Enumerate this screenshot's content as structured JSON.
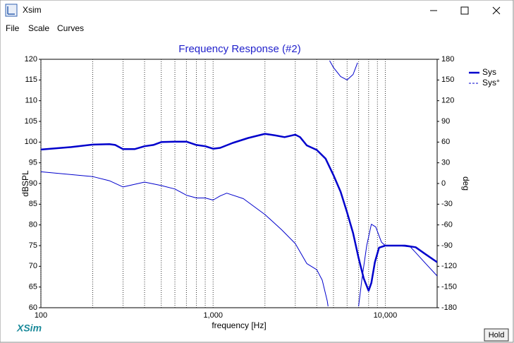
{
  "window": {
    "title": "Xsim"
  },
  "menu": [
    "File",
    "Scale",
    "Curves"
  ],
  "logo": "XSim",
  "button": "Hold",
  "chart_data": {
    "type": "line",
    "title": "Frequency Response (#2)",
    "xlabel": "frequency [Hz]",
    "ylabel": "dBSPL",
    "y2label": "deg",
    "xscale": "log",
    "xlim": [
      100,
      20000
    ],
    "ylim": [
      60,
      120
    ],
    "y2lim": [
      -180,
      180
    ],
    "xticks": [
      100,
      {
        "value": 1000,
        "label": "1,000"
      },
      {
        "value": 10000,
        "label": "10,000"
      }
    ],
    "xminor": [
      200,
      300,
      400,
      500,
      600,
      700,
      800,
      900,
      2000,
      3000,
      4000,
      5000,
      6000,
      7000,
      8000,
      9000
    ],
    "yticks": [
      60,
      65,
      70,
      75,
      80,
      85,
      90,
      95,
      100,
      105,
      110,
      115,
      120
    ],
    "y2ticks": [
      -180,
      -150,
      -120,
      -90,
      -60,
      -30,
      0,
      30,
      60,
      90,
      120,
      150,
      180
    ],
    "legend": "right",
    "series": [
      {
        "name": "Sys",
        "color": "#0000cc",
        "width": 2.5,
        "linestyle": "solid",
        "x": [
          100,
          150,
          200,
          250,
          270,
          300,
          350,
          400,
          450,
          500,
          600,
          700,
          800,
          900,
          1000,
          1100,
          1300,
          1600,
          2000,
          2300,
          2600,
          3000,
          3200,
          3500,
          4000,
          4500,
          5000,
          5500,
          6000,
          6500,
          7000,
          7500,
          8000,
          8300,
          8700,
          9200,
          10000,
          13000,
          15000,
          17000,
          20000
        ],
        "values": [
          98.2,
          98.8,
          99.4,
          99.5,
          99.3,
          98.3,
          98.3,
          99,
          99.3,
          100,
          100.1,
          100.1,
          99.3,
          99,
          98.4,
          98.6,
          99.8,
          101,
          102,
          101.6,
          101.2,
          101.8,
          101.2,
          99.2,
          98.1,
          96,
          92,
          88,
          83,
          78,
          72,
          67,
          64.1,
          66,
          71,
          74.5,
          75,
          75,
          74.6,
          73,
          71
        ]
      },
      {
        "name": "Sys°",
        "color": "#0000cc",
        "width": 1,
        "linestyle": "dashed",
        "axis": "y2",
        "x": [
          100,
          200,
          250,
          300,
          400,
          500,
          600,
          700,
          800,
          900,
          1000,
          1100,
          1200,
          1500,
          2000,
          2500,
          3000,
          3500,
          4000,
          4300,
          4600,
          4650,
          4700,
          4750,
          5000,
          5500,
          6000,
          6500,
          6900,
          6950,
          7000,
          7300,
          7800,
          8300,
          8800,
          9500,
          10000,
          12000,
          14000,
          15000,
          17000,
          20000
        ],
        "values": [
          17,
          10,
          4,
          -5,
          2,
          -3,
          -8,
          -17,
          -21,
          -21,
          -24,
          -18,
          -14,
          -22,
          -45,
          -67,
          -87,
          -116,
          -125,
          -140,
          -170,
          -178,
          null,
          178,
          168,
          155,
          150,
          158,
          175,
          null,
          -178,
          -140,
          -90,
          -59,
          -63,
          -85,
          -90,
          -90,
          -92,
          -100,
          -115,
          -134
        ]
      }
    ]
  }
}
